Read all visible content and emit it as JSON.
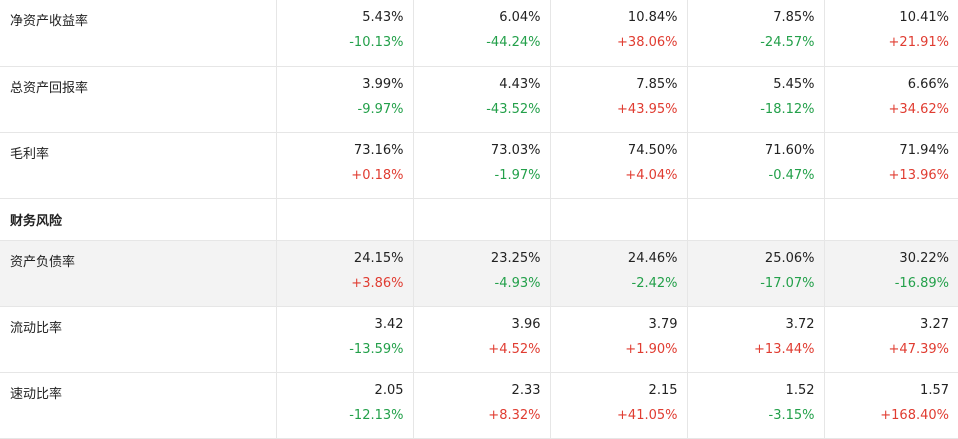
{
  "colors": {
    "up": "#e03c31",
    "down": "#23a04a"
  },
  "sections": [
    {
      "title": null,
      "rows": [
        {
          "label": "净资产收益率",
          "highlight": false,
          "cells": [
            {
              "value": "5.43%",
              "change": "-10.13%"
            },
            {
              "value": "6.04%",
              "change": "-44.24%"
            },
            {
              "value": "10.84%",
              "change": "+38.06%"
            },
            {
              "value": "7.85%",
              "change": "-24.57%"
            },
            {
              "value": "10.41%",
              "change": "+21.91%"
            }
          ]
        },
        {
          "label": "总资产回报率",
          "highlight": false,
          "cells": [
            {
              "value": "3.99%",
              "change": "-9.97%"
            },
            {
              "value": "4.43%",
              "change": "-43.52%"
            },
            {
              "value": "7.85%",
              "change": "+43.95%"
            },
            {
              "value": "5.45%",
              "change": "-18.12%"
            },
            {
              "value": "6.66%",
              "change": "+34.62%"
            }
          ]
        },
        {
          "label": "毛利率",
          "highlight": false,
          "cells": [
            {
              "value": "73.16%",
              "change": "+0.18%"
            },
            {
              "value": "73.03%",
              "change": "-1.97%"
            },
            {
              "value": "74.50%",
              "change": "+4.04%"
            },
            {
              "value": "71.60%",
              "change": "-0.47%"
            },
            {
              "value": "71.94%",
              "change": "+13.96%"
            }
          ]
        }
      ]
    },
    {
      "title": "财务风险",
      "rows": [
        {
          "label": "资产负债率",
          "highlight": true,
          "cells": [
            {
              "value": "24.15%",
              "change": "+3.86%"
            },
            {
              "value": "23.25%",
              "change": "-4.93%"
            },
            {
              "value": "24.46%",
              "change": "-2.42%"
            },
            {
              "value": "25.06%",
              "change": "-17.07%"
            },
            {
              "value": "30.22%",
              "change": "-16.89%"
            }
          ]
        },
        {
          "label": "流动比率",
          "highlight": false,
          "cells": [
            {
              "value": "3.42",
              "change": "-13.59%"
            },
            {
              "value": "3.96",
              "change": "+4.52%"
            },
            {
              "value": "3.79",
              "change": "+1.90%"
            },
            {
              "value": "3.72",
              "change": "+13.44%"
            },
            {
              "value": "3.27",
              "change": "+47.39%"
            }
          ]
        },
        {
          "label": "速动比率",
          "highlight": false,
          "cells": [
            {
              "value": "2.05",
              "change": "-12.13%"
            },
            {
              "value": "2.33",
              "change": "+8.32%"
            },
            {
              "value": "2.15",
              "change": "+41.05%"
            },
            {
              "value": "1.52",
              "change": "-3.15%"
            },
            {
              "value": "1.57",
              "change": "+168.40%"
            }
          ]
        }
      ]
    }
  ]
}
